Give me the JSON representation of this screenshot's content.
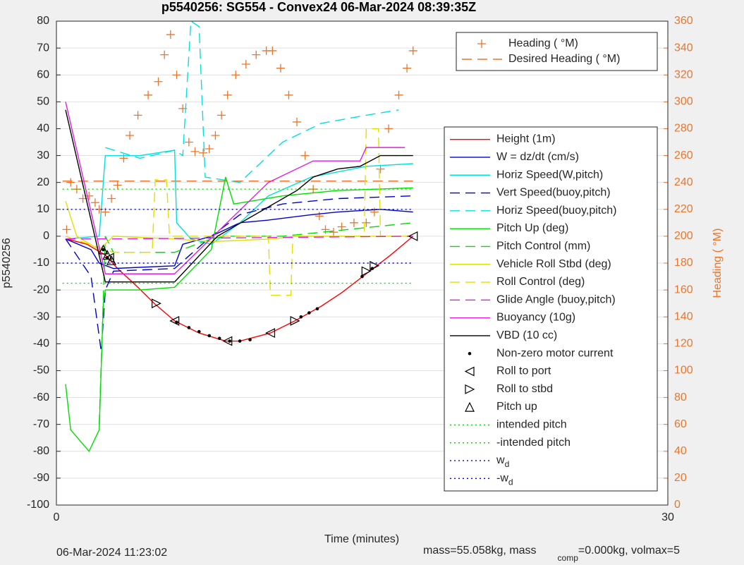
{
  "chart_data": {
    "type": "line",
    "title": "p5540256: SG554 - Convex24 06-Mar-2024 08:39:35Z",
    "xlabel": "Time (minutes)",
    "ylabel": "p5540256",
    "y2label": "Heading ( °M)",
    "footer_left": "06-Mar-2024 11:23:02",
    "footer_right": [
      "mass=55.058kg, mass",
      "comp",
      "=0.000kg, volmax=5"
    ],
    "xlim": [
      0,
      30
    ],
    "xticks": [
      0,
      30
    ],
    "ylim": [
      -100,
      80
    ],
    "yticks": [
      -100,
      -90,
      -80,
      -70,
      -60,
      -50,
      -40,
      -30,
      -20,
      -10,
      0,
      10,
      20,
      30,
      40,
      50,
      60,
      70,
      80
    ],
    "y2lim": [
      0,
      360
    ],
    "y2ticks": [
      0,
      20,
      40,
      60,
      80,
      100,
      120,
      140,
      160,
      180,
      200,
      220,
      240,
      260,
      280,
      300,
      320,
      340,
      360
    ],
    "grid": true,
    "series": [
      {
        "name": "Heading ( °M)",
        "color": "#e8762d",
        "style": "plus",
        "axis": "y2",
        "x": [
          0.5,
          0.7,
          1.0,
          1.3,
          1.6,
          1.9,
          2.1,
          2.4,
          2.7,
          3.0,
          3.3,
          3.6,
          4.0,
          4.5,
          5.0,
          5.3,
          5.6,
          5.9,
          6.2,
          6.5,
          6.8,
          7.2,
          7.5,
          7.8,
          8.1,
          8.4,
          8.8,
          9.3,
          9.8,
          10.3,
          10.6,
          11.0,
          11.4,
          11.8,
          12.2,
          12.6,
          12.9,
          13.2,
          13.6,
          14.0,
          14.6,
          15.2,
          15.6,
          15.9,
          16.3,
          16.8,
          17.2,
          17.5
        ],
        "values": [
          205,
          240,
          235,
          228,
          230,
          225,
          220,
          218,
          228,
          238,
          258,
          275,
          290,
          305,
          315,
          335,
          350,
          320,
          295,
          270,
          263,
          262,
          265,
          275,
          290,
          305,
          320,
          328,
          335,
          338,
          338,
          325,
          305,
          285,
          260,
          235,
          215,
          205,
          203,
          207,
          210,
          210,
          218,
          250,
          280,
          305,
          325,
          338
        ]
      },
      {
        "name": "Desired Heading ( °M)",
        "color": "#e8762d",
        "style": "dashed",
        "axis": "y2",
        "x": [
          0.3,
          17.5
        ],
        "values": [
          241,
          241
        ]
      },
      {
        "name": "Height (1m)",
        "color": "#ff0000",
        "style": "solid",
        "x": [
          0.5,
          1.5,
          2.4,
          3.0,
          4.0,
          4.8,
          5.8,
          7.0,
          8.3,
          9.0,
          10.5,
          11.7,
          13.0,
          14.0,
          15.2,
          16.4,
          17.5
        ],
        "values": [
          -1,
          -3,
          -7,
          -12,
          -19,
          -25,
          -31.5,
          -36,
          -39,
          -39,
          -36,
          -31.5,
          -26,
          -21,
          -14,
          -7,
          0
        ]
      },
      {
        "name": "W = dz/dt (cm/s)",
        "color": "#0000cc",
        "style": "solid",
        "x": [
          0.45,
          1.7,
          2.1,
          2.8,
          5.8,
          6.2,
          7.6,
          9.0,
          10.4,
          12.5,
          13.8,
          15.9,
          17.5
        ],
        "values": [
          -1,
          -5,
          -10,
          -12,
          -11,
          -3,
          0,
          5,
          6,
          8,
          9,
          10,
          9
        ]
      },
      {
        "name": "Horiz Speed(W,pitch)",
        "color": "#00e0e0",
        "style": "solid",
        "x": [
          0.45,
          2.1,
          2.4,
          4.1,
          5.8,
          5.9,
          6.6,
          7.6,
          9.0,
          10.4,
          12.5,
          15.2,
          17.5
        ],
        "values": [
          -1,
          0,
          30,
          30,
          32,
          5,
          -1,
          -3,
          5,
          15,
          22,
          26,
          27
        ]
      },
      {
        "name": "Vert Speed(buoy,pitch)",
        "color": "#0000cc",
        "style": "dashed",
        "x": [
          0.45,
          1.7,
          2.2,
          2.4,
          2.8,
          5.8,
          7.6,
          9.0,
          11.1,
          13.8,
          17.5
        ],
        "values": [
          -1,
          -15,
          -43,
          -20,
          -13,
          -12,
          0,
          8,
          12,
          14,
          15
        ]
      },
      {
        "name": "Horiz Speed(buoy,pitch)",
        "color": "#00e0e0",
        "style": "dashed",
        "x": [
          2.4,
          4.1,
          5.8,
          6.2,
          6.6,
          7.0,
          7.3,
          9.0,
          11.1,
          13.0,
          15.2,
          16.8
        ],
        "values": [
          33,
          29,
          32,
          30,
          80,
          78,
          22,
          20,
          35,
          42,
          45,
          47
        ]
      },
      {
        "name": "Pitch Up (deg)",
        "color": "#00e000",
        "style": "solid",
        "x": [
          0.45,
          0.7,
          1.6,
          2.1,
          2.3,
          2.4,
          4.1,
          5.8,
          7.6,
          8.3,
          8.7,
          11.1,
          13.8,
          17.5
        ],
        "values": [
          -55,
          -72,
          -80,
          -72,
          -25,
          -20,
          -20,
          -19,
          -5,
          22,
          12,
          15,
          17,
          18
        ]
      },
      {
        "name": "Pitch Control (mm)",
        "color": "#00e000",
        "style": "dashed",
        "x": [
          2.1,
          2.4,
          2.8,
          5.8,
          7.6,
          8.3,
          11.1,
          17.5
        ],
        "values": [
          -70,
          0,
          -6,
          -6,
          -1,
          0,
          0,
          5
        ]
      },
      {
        "name": "Vehicle Roll Stbd (deg)",
        "color": "#e0e000",
        "style": "solid",
        "x": [
          0.45,
          1.0,
          2.1,
          2.8,
          5.8,
          7.6,
          10.6,
          11.8,
          17.5
        ],
        "values": [
          13,
          0,
          -5,
          0,
          -1,
          -2,
          -1,
          0,
          0
        ]
      },
      {
        "name": "Roll Control (deg)",
        "color": "#e0e000",
        "style": "dashed",
        "x": [
          0.45,
          2.8,
          4.7,
          4.85,
          5.4,
          5.55,
          10.4,
          10.5,
          11.5,
          11.6,
          15.1,
          15.2,
          15.8,
          15.9,
          17.5
        ],
        "values": [
          0,
          -6,
          -6,
          21,
          21,
          0,
          0,
          -22,
          -22,
          0,
          0,
          40,
          40,
          0,
          0
        ]
      },
      {
        "name": "Glide Angle (buoy,pitch)",
        "color": "#e020e0",
        "style": "dashed",
        "x": [
          0.45,
          3.0,
          17.5
        ],
        "values": [
          -1,
          -1,
          0
        ]
      },
      {
        "name": "Buoyancy (10g)",
        "color": "#e020e0",
        "style": "solid",
        "x": [
          0.45,
          2.4,
          5.8,
          10.4,
          12.6,
          14.9,
          15.2,
          17.1
        ],
        "values": [
          50,
          -14,
          -14,
          20,
          28,
          28,
          33,
          33
        ]
      },
      {
        "name": "VBD (10 cc)",
        "color": "#000000",
        "style": "solid",
        "x": [
          0.45,
          2.4,
          5.8,
          7.9,
          11.8,
          12.6,
          13.8,
          14.9,
          15.9,
          17.5
        ],
        "values": [
          47,
          -17,
          -17,
          0,
          17,
          22,
          25,
          26,
          30,
          30
        ]
      },
      {
        "name": "Non-zero motor current",
        "color": "#000000",
        "style": "dot",
        "x": [
          2.3,
          2.5,
          5.9,
          6.5,
          7.0,
          7.5,
          8.0,
          8.5,
          9.0,
          9.5,
          12.0,
          12.4,
          12.8,
          15.0,
          15.5
        ],
        "values": [
          -5,
          -8,
          -32,
          -34,
          -35.5,
          -37,
          -38,
          -39,
          -39,
          -38.5,
          -30,
          -28.5,
          -27,
          -15,
          -12
        ]
      },
      {
        "name": "Roll to port",
        "color": "#000000",
        "style": "tri-left",
        "x": [
          2.6,
          5.8,
          8.4,
          10.5,
          17.5
        ],
        "values": [
          -8,
          -31.5,
          -39,
          -36,
          0
        ]
      },
      {
        "name": "Roll to stbd",
        "color": "#000000",
        "style": "tri-right",
        "x": [
          4.9,
          11.7,
          15.2,
          15.6
        ],
        "values": [
          -25,
          -31.5,
          -13,
          -11
        ]
      },
      {
        "name": "Pitch up",
        "color": "#000000",
        "style": "tri-up",
        "x": [
          2.3,
          2.5,
          2.7
        ],
        "values": [
          -5,
          -7,
          -9
        ]
      },
      {
        "name": "intended pitch",
        "color": "#00e000",
        "style": "dotted",
        "x": [
          0.3,
          17.5
        ],
        "values": [
          17.5,
          17.5
        ]
      },
      {
        "name": "-intended pitch",
        "color": "#00e000",
        "style": "dotted",
        "x": [
          0.3,
          17.5
        ],
        "values": [
          -17.5,
          -17.5
        ]
      },
      {
        "name": "w",
        "name_sub": "d",
        "color": "#0000cc",
        "style": "dotted",
        "x": [
          0.3,
          17.5
        ],
        "values": [
          10,
          10
        ]
      },
      {
        "name": "-w",
        "name_sub": "d",
        "color": "#0000cc",
        "style": "dotted",
        "x": [
          0.3,
          17.5
        ],
        "values": [
          -10,
          -10
        ]
      }
    ]
  }
}
